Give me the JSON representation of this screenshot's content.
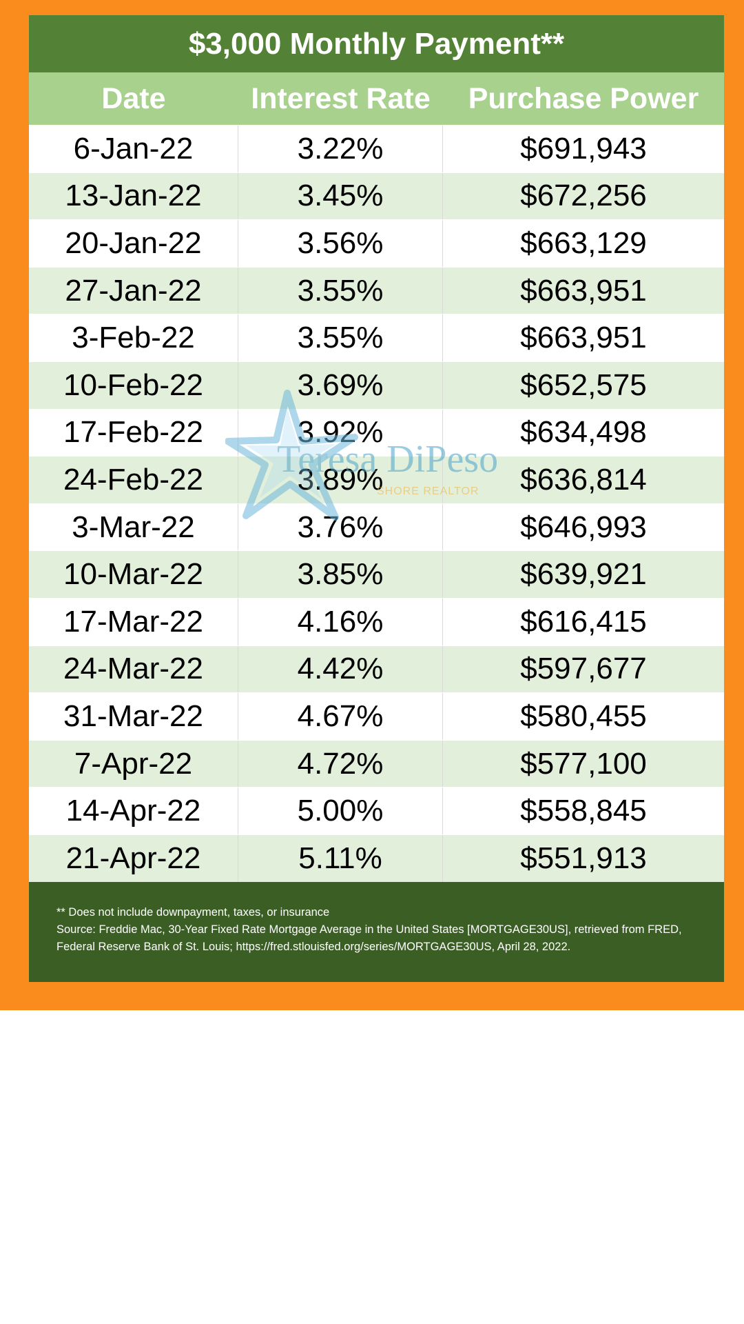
{
  "chart_data": {
    "type": "table",
    "title": "$3,000 Monthly Payment**",
    "columns": [
      "Date",
      "Interest Rate",
      "Purchase Power"
    ],
    "rows": [
      [
        "6-Jan-22",
        "3.22%",
        "$691,943"
      ],
      [
        "13-Jan-22",
        "3.45%",
        "$672,256"
      ],
      [
        "20-Jan-22",
        "3.56%",
        "$663,129"
      ],
      [
        "27-Jan-22",
        "3.55%",
        "$663,951"
      ],
      [
        "3-Feb-22",
        "3.55%",
        "$663,951"
      ],
      [
        "10-Feb-22",
        "3.69%",
        "$652,575"
      ],
      [
        "17-Feb-22",
        "3.92%",
        "$634,498"
      ],
      [
        "24-Feb-22",
        "3.89%",
        "$636,814"
      ],
      [
        "3-Mar-22",
        "3.76%",
        "$646,993"
      ],
      [
        "10-Mar-22",
        "3.85%",
        "$639,921"
      ],
      [
        "17-Mar-22",
        "4.16%",
        "$616,415"
      ],
      [
        "24-Mar-22",
        "4.42%",
        "$597,677"
      ],
      [
        "31-Mar-22",
        "4.67%",
        "$580,455"
      ],
      [
        "7-Apr-22",
        "4.72%",
        "$577,100"
      ],
      [
        "14-Apr-22",
        "5.00%",
        "$558,845"
      ],
      [
        "21-Apr-22",
        "5.11%",
        "$551,913"
      ]
    ]
  },
  "footer": {
    "note": "** Does not include downpayment, taxes, or insurance",
    "source_line1": "Source: Freddie Mac, 30-Year Fixed Rate Mortgage Average in the United States [MORTGAGE30US], retrieved from FRED,",
    "source_line2": "Federal Reserve Bank of St. Louis; https://fred.stlouisfed.org/series/MORTGAGE30US, April 28, 2022."
  },
  "watermark": {
    "name": "Teresa DiPeso",
    "tagline": "SHORE REALTOR",
    "icon": "starfish-icon"
  },
  "colors": {
    "frame": "#fa8c1d",
    "title_bg": "#538135",
    "header_bg": "#a9d18e",
    "row_alt_bg": "#e2efda",
    "footer_bg": "#3b5e25"
  }
}
